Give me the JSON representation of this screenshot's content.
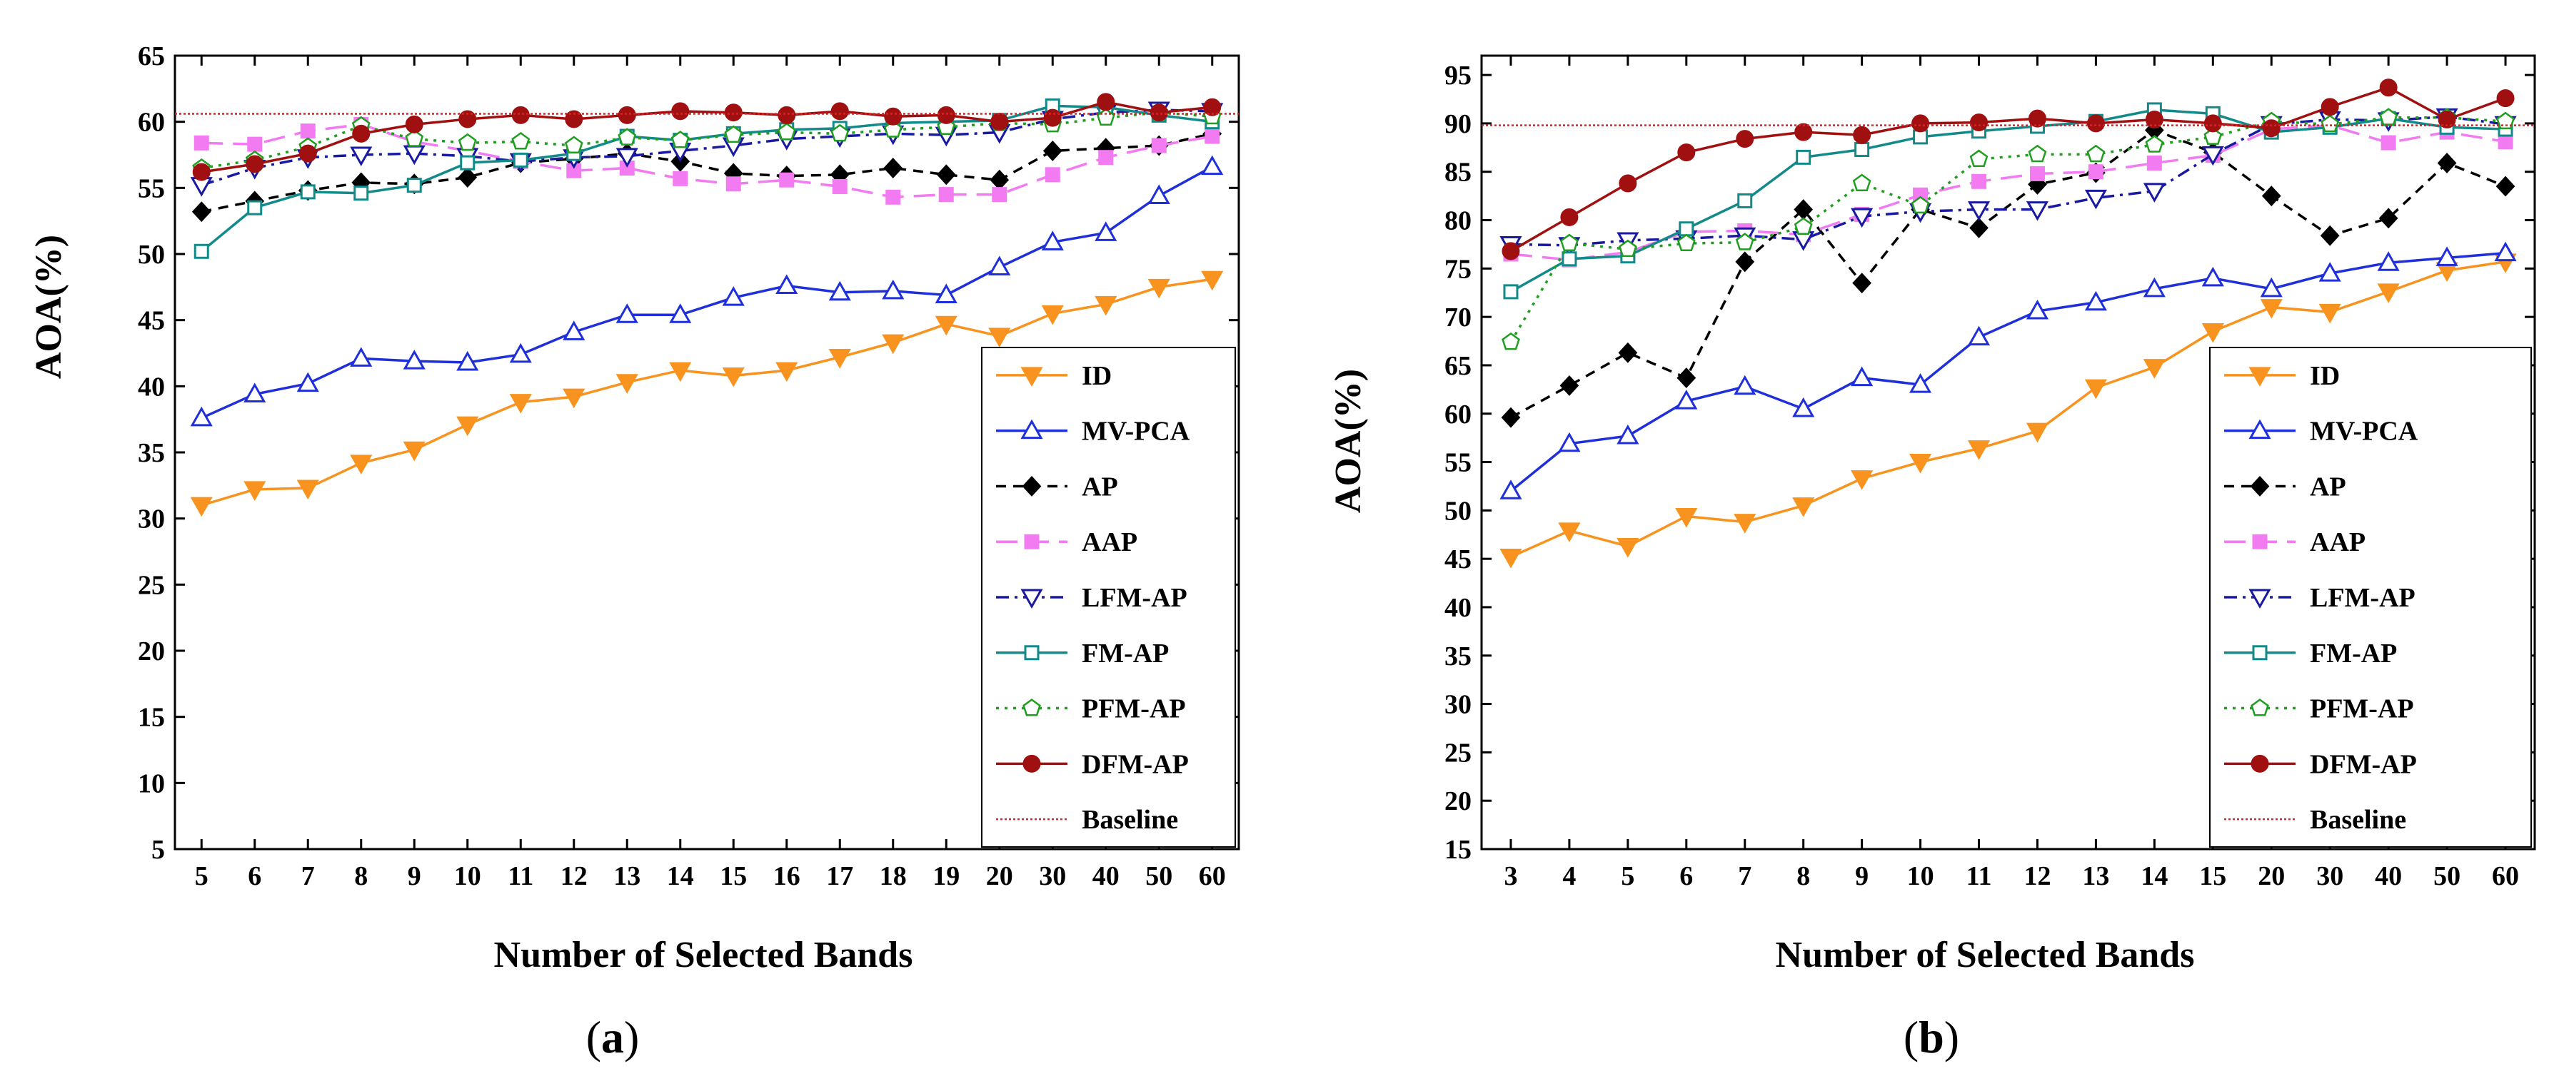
{
  "series_styles": [
    {
      "name": "ID",
      "color": "#f7931e",
      "dash": "",
      "marker": "tri-down",
      "fill": true
    },
    {
      "name": "MV-PCA",
      "color": "#1f2fd9",
      "dash": "",
      "marker": "tri-up",
      "fill": false
    },
    {
      "name": "AP",
      "color": "#000000",
      "dash": "dash",
      "marker": "diamond",
      "fill": true
    },
    {
      "name": "AAP",
      "color": "#f27bf2",
      "dash": "longdash",
      "marker": "square",
      "fill": true
    },
    {
      "name": "LFM-AP",
      "color": "#1a1aa0",
      "dash": "dashdot",
      "marker": "tri-down",
      "fill": false
    },
    {
      "name": "FM-AP",
      "color": "#138a8a",
      "dash": "",
      "marker": "square",
      "fill": false
    },
    {
      "name": "PFM-AP",
      "color": "#1f9e1f",
      "dash": "dot",
      "marker": "pentagon",
      "fill": false
    },
    {
      "name": "DFM-AP",
      "color": "#a01010",
      "dash": "",
      "marker": "circle",
      "fill": true
    },
    {
      "name": "Baseline",
      "color": "#e02020",
      "dash": "fine",
      "marker": "none",
      "fill": false
    }
  ],
  "chart_data": [
    {
      "type": "line",
      "panel_label": "a",
      "xlabel": "Number of Selected Bands",
      "ylabel": "AOA(%)",
      "categories": [
        "5",
        "6",
        "7",
        "8",
        "9",
        "10",
        "11",
        "12",
        "13",
        "14",
        "15",
        "16",
        "17",
        "18",
        "19",
        "20",
        "30",
        "40",
        "50",
        "60"
      ],
      "ylim": [
        5,
        65
      ],
      "yticks": [
        5,
        10,
        15,
        20,
        25,
        30,
        35,
        40,
        45,
        50,
        55,
        60,
        65
      ],
      "legend_position": "bottom-right",
      "series": [
        {
          "name": "ID",
          "values": [
            31.0,
            32.2,
            32.3,
            34.2,
            35.2,
            37.1,
            38.8,
            39.2,
            40.3,
            41.2,
            40.8,
            41.2,
            42.2,
            43.3,
            44.7,
            43.8,
            45.5,
            46.2,
            47.5,
            48.1
          ]
        },
        {
          "name": "MV-PCA",
          "values": [
            37.6,
            39.4,
            40.2,
            42.1,
            41.9,
            41.8,
            42.4,
            44.1,
            45.4,
            45.4,
            46.7,
            47.6,
            47.1,
            47.2,
            46.9,
            49.0,
            50.9,
            51.6,
            54.4,
            56.6
          ]
        },
        {
          "name": "AP",
          "values": [
            53.2,
            54.0,
            54.8,
            55.4,
            55.3,
            55.8,
            56.9,
            57.2,
            57.6,
            57.0,
            56.1,
            55.9,
            56.0,
            56.5,
            56.0,
            55.6,
            57.8,
            58.0,
            58.2,
            59.1
          ]
        },
        {
          "name": "AAP",
          "values": [
            58.4,
            58.3,
            59.3,
            59.8,
            58.5,
            57.8,
            57.0,
            56.3,
            56.5,
            55.7,
            55.3,
            55.6,
            55.1,
            54.3,
            54.5,
            54.5,
            56.0,
            57.3,
            58.2,
            58.9
          ]
        },
        {
          "name": "LFM-AP",
          "values": [
            55.2,
            56.5,
            57.3,
            57.5,
            57.6,
            57.4,
            57.0,
            57.3,
            57.4,
            57.8,
            58.2,
            58.7,
            58.9,
            59.1,
            59.0,
            59.2,
            60.2,
            60.7,
            60.9,
            60.8
          ]
        },
        {
          "name": "FM-AP",
          "values": [
            50.2,
            53.5,
            54.7,
            54.6,
            55.2,
            56.9,
            57.1,
            57.6,
            58.9,
            58.6,
            59.1,
            59.4,
            59.5,
            59.9,
            60.0,
            60.1,
            61.2,
            61.1,
            60.5,
            60.0
          ]
        },
        {
          "name": "PFM-AP",
          "values": [
            56.5,
            57.1,
            58.1,
            59.7,
            58.7,
            58.4,
            58.5,
            58.2,
            58.8,
            58.6,
            59.0,
            59.2,
            59.1,
            59.4,
            59.6,
            59.9,
            59.8,
            60.3,
            60.7,
            60.4
          ]
        },
        {
          "name": "DFM-AP",
          "values": [
            56.2,
            56.8,
            57.6,
            59.1,
            59.8,
            60.2,
            60.5,
            60.2,
            60.5,
            60.8,
            60.7,
            60.5,
            60.8,
            60.4,
            60.5,
            60.0,
            60.3,
            61.5,
            60.7,
            61.1
          ]
        },
        {
          "name": "Baseline",
          "values": [
            60.6,
            60.6,
            60.6,
            60.6,
            60.6,
            60.6,
            60.6,
            60.6,
            60.6,
            60.6,
            60.6,
            60.6,
            60.6,
            60.6,
            60.6,
            60.6,
            60.6,
            60.6,
            60.6,
            60.6
          ]
        }
      ]
    },
    {
      "type": "line",
      "panel_label": "b",
      "xlabel": "Number of Selected Bands",
      "ylabel": "AOA(%)",
      "categories": [
        "3",
        "4",
        "5",
        "6",
        "7",
        "8",
        "9",
        "10",
        "11",
        "12",
        "13",
        "14",
        "15",
        "20",
        "30",
        "40",
        "50",
        "60"
      ],
      "ylim": [
        15,
        97
      ],
      "yticks": [
        15,
        20,
        25,
        30,
        35,
        40,
        45,
        50,
        55,
        60,
        65,
        70,
        75,
        80,
        85,
        90,
        95
      ],
      "legend_position": "bottom-right",
      "series": [
        {
          "name": "ID",
          "values": [
            45.2,
            47.9,
            46.3,
            49.4,
            48.8,
            50.5,
            53.3,
            55.0,
            56.4,
            58.2,
            62.7,
            64.8,
            68.5,
            71.0,
            70.5,
            72.6,
            74.8,
            75.7
          ]
        },
        {
          "name": "MV-PCA",
          "values": [
            52.0,
            56.9,
            57.7,
            61.3,
            62.8,
            60.5,
            63.7,
            63.0,
            67.9,
            70.6,
            71.5,
            72.9,
            74.0,
            72.9,
            74.5,
            75.6,
            76.1,
            76.6
          ]
        },
        {
          "name": "AP",
          "values": [
            59.6,
            62.9,
            66.3,
            63.7,
            75.7,
            81.1,
            73.5,
            81.1,
            79.2,
            83.7,
            84.9,
            89.3,
            87.0,
            82.5,
            78.4,
            80.2,
            85.9,
            83.5
          ]
        },
        {
          "name": "AAP",
          "values": [
            76.5,
            75.9,
            76.7,
            78.8,
            78.9,
            78.5,
            80.6,
            82.6,
            84.0,
            84.8,
            85.0,
            85.9,
            86.7,
            89.4,
            89.8,
            88.0,
            89.1,
            88.1
          ]
        },
        {
          "name": "LFM-AP",
          "values": [
            77.5,
            77.4,
            77.9,
            78.1,
            78.4,
            78.0,
            80.4,
            80.9,
            81.1,
            81.1,
            82.3,
            83.0,
            86.8,
            89.9,
            90.4,
            90.3,
            90.7,
            89.9
          ]
        },
        {
          "name": "FM-AP",
          "values": [
            72.6,
            76.0,
            76.3,
            79.1,
            82.0,
            86.5,
            87.3,
            88.6,
            89.2,
            89.7,
            90.2,
            91.4,
            91.0,
            89.1,
            89.6,
            90.5,
            89.6,
            89.4
          ]
        },
        {
          "name": "PFM-AP",
          "values": [
            67.4,
            77.6,
            77.0,
            77.6,
            77.7,
            79.3,
            83.8,
            81.5,
            86.3,
            86.8,
            86.8,
            87.8,
            88.6,
            90.2,
            89.9,
            90.6,
            90.6,
            90.2
          ]
        },
        {
          "name": "DFM-AP",
          "values": [
            76.8,
            80.3,
            83.8,
            87.0,
            88.4,
            89.1,
            88.8,
            90.0,
            90.1,
            90.5,
            90.0,
            90.4,
            90.0,
            89.5,
            91.7,
            93.7,
            90.4,
            92.6
          ]
        },
        {
          "name": "Baseline",
          "values": [
            89.8,
            89.8,
            89.8,
            89.8,
            89.8,
            89.8,
            89.8,
            89.8,
            89.8,
            89.8,
            89.8,
            89.8,
            89.8,
            89.8,
            89.8,
            89.8,
            89.8,
            89.8
          ]
        }
      ]
    }
  ]
}
